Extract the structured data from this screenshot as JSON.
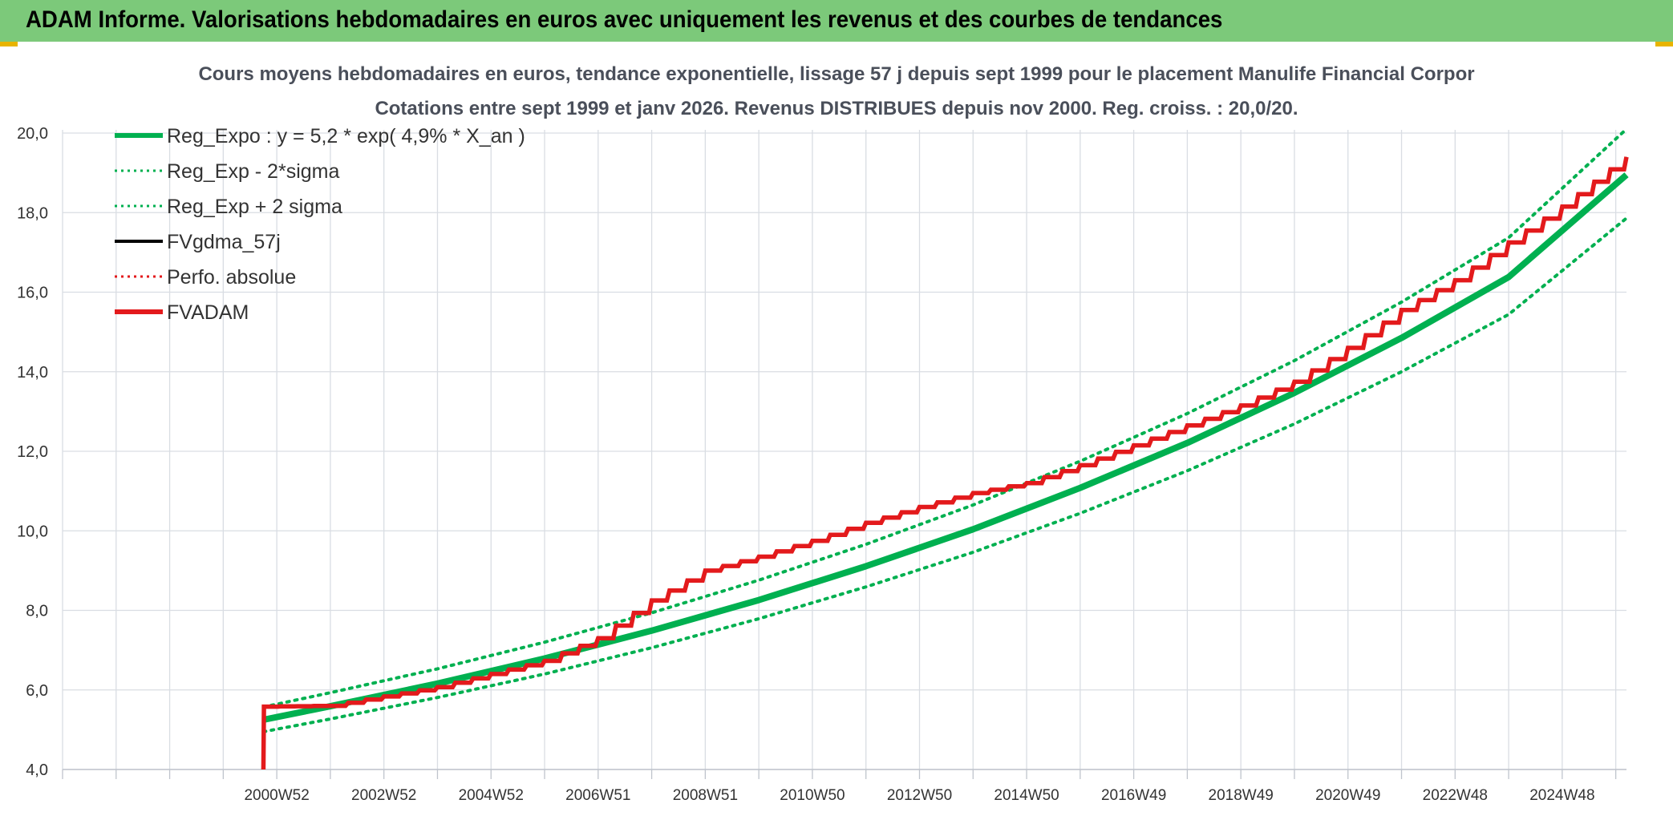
{
  "header": {
    "title": "ADAM Informe. Valorisations hebdomadaires en euros avec uniquement les revenus et des courbes de tendances"
  },
  "colors": {
    "header_bg": "#7cc97a",
    "reg_expo": "#00b050",
    "fvadam": "#e31a1c",
    "fvgdma": "#000000",
    "grid": "#d9dde3",
    "title_text": "#4a4f5a",
    "corner_accent": "#e8b400"
  },
  "chart_data": {
    "type": "line",
    "title_line1": "Cours moyens hebdomadaires en euros, tendance exponentielle, lissage 57 j depuis sept 1999 pour le placement Manulife Financial Corpor",
    "title_line2": "Cotations entre sept 1999 et janv 2026. Revenus DISTRIBUES depuis nov 2000. Reg. croiss. : 20,0/20.",
    "xlabel": "",
    "ylabel": "",
    "ylim": [
      4,
      20
    ],
    "y_ticks": [
      "4,0",
      "6,0",
      "8,0",
      "10,0",
      "12,0",
      "14,0",
      "16,0",
      "18,0",
      "20,0"
    ],
    "x_tick_labels": [
      "2000W52",
      "2002W52",
      "2004W52",
      "2006W51",
      "2008W51",
      "2010W50",
      "2012W50",
      "2014W50",
      "2016W49",
      "2018W49",
      "2020W49",
      "2022W48",
      "2024W48"
    ],
    "xlim_years": [
      1997,
      2026.2
    ],
    "grid": true,
    "legend_position": "top-left",
    "legend": [
      {
        "label": "Reg_Expo : y = 5,2 * exp( 4,9% *  X_an )",
        "style": "solid-thick",
        "color": "#00b050"
      },
      {
        "label": "Reg_Exp - 2*sigma",
        "style": "dotted",
        "color": "#00b050"
      },
      {
        "label": "Reg_Exp + 2 sigma",
        "style": "dotted",
        "color": "#00b050"
      },
      {
        "label": "FVgdma_57j",
        "style": "solid",
        "color": "#000000"
      },
      {
        "label": "Perfo. absolue",
        "style": "dotted",
        "color": "#e31a1c"
      },
      {
        "label": "FVADAM",
        "style": "solid-thick",
        "color": "#e31a1c"
      }
    ],
    "series": [
      {
        "name": "Reg_Expo : y = 5,2 * exp( 4,9% *  X_an )",
        "x": [
          2000.75,
          2002,
          2004,
          2006,
          2008,
          2010,
          2012,
          2014,
          2016,
          2018,
          2020,
          2022,
          2024,
          2026.2
        ],
        "values": [
          5.25,
          5.59,
          6.16,
          6.79,
          7.49,
          8.26,
          9.11,
          10.04,
          11.08,
          12.21,
          13.47,
          14.85,
          16.38,
          18.95
        ]
      },
      {
        "name": "Reg_Exp - 2*sigma",
        "x": [
          2000.75,
          2002,
          2004,
          2006,
          2008,
          2010,
          2012,
          2014,
          2016,
          2018,
          2020,
          2022,
          2024,
          2026.2
        ],
        "values": [
          4.95,
          5.27,
          5.81,
          6.4,
          7.06,
          7.79,
          8.59,
          9.46,
          10.44,
          11.51,
          12.69,
          14.0,
          15.44,
          17.86
        ]
      },
      {
        "name": "Reg_Exp + 2 sigma",
        "x": [
          2000.75,
          2002,
          2004,
          2006,
          2008,
          2010,
          2012,
          2014,
          2016,
          2018,
          2020,
          2022,
          2024,
          2026.2
        ],
        "values": [
          5.57,
          5.93,
          6.53,
          7.2,
          7.94,
          8.76,
          9.66,
          10.65,
          11.75,
          12.95,
          14.28,
          15.75,
          17.37,
          20.1
        ]
      },
      {
        "name": "FVADAM",
        "x": [
          2000.75,
          2000.76,
          2002,
          2004,
          2006,
          2007,
          2008,
          2009,
          2010,
          2011,
          2012,
          2013,
          2014,
          2015,
          2016,
          2017,
          2018,
          2019,
          2020,
          2021,
          2022,
          2023,
          2024,
          2025,
          2026.2
        ],
        "values": [
          4.0,
          5.58,
          5.6,
          6.07,
          6.73,
          7.3,
          8.25,
          9.0,
          9.35,
          9.75,
          10.2,
          10.6,
          10.95,
          11.2,
          11.65,
          12.15,
          12.65,
          13.15,
          13.75,
          14.6,
          15.55,
          16.3,
          17.25,
          18.15,
          19.4
        ]
      }
    ]
  }
}
